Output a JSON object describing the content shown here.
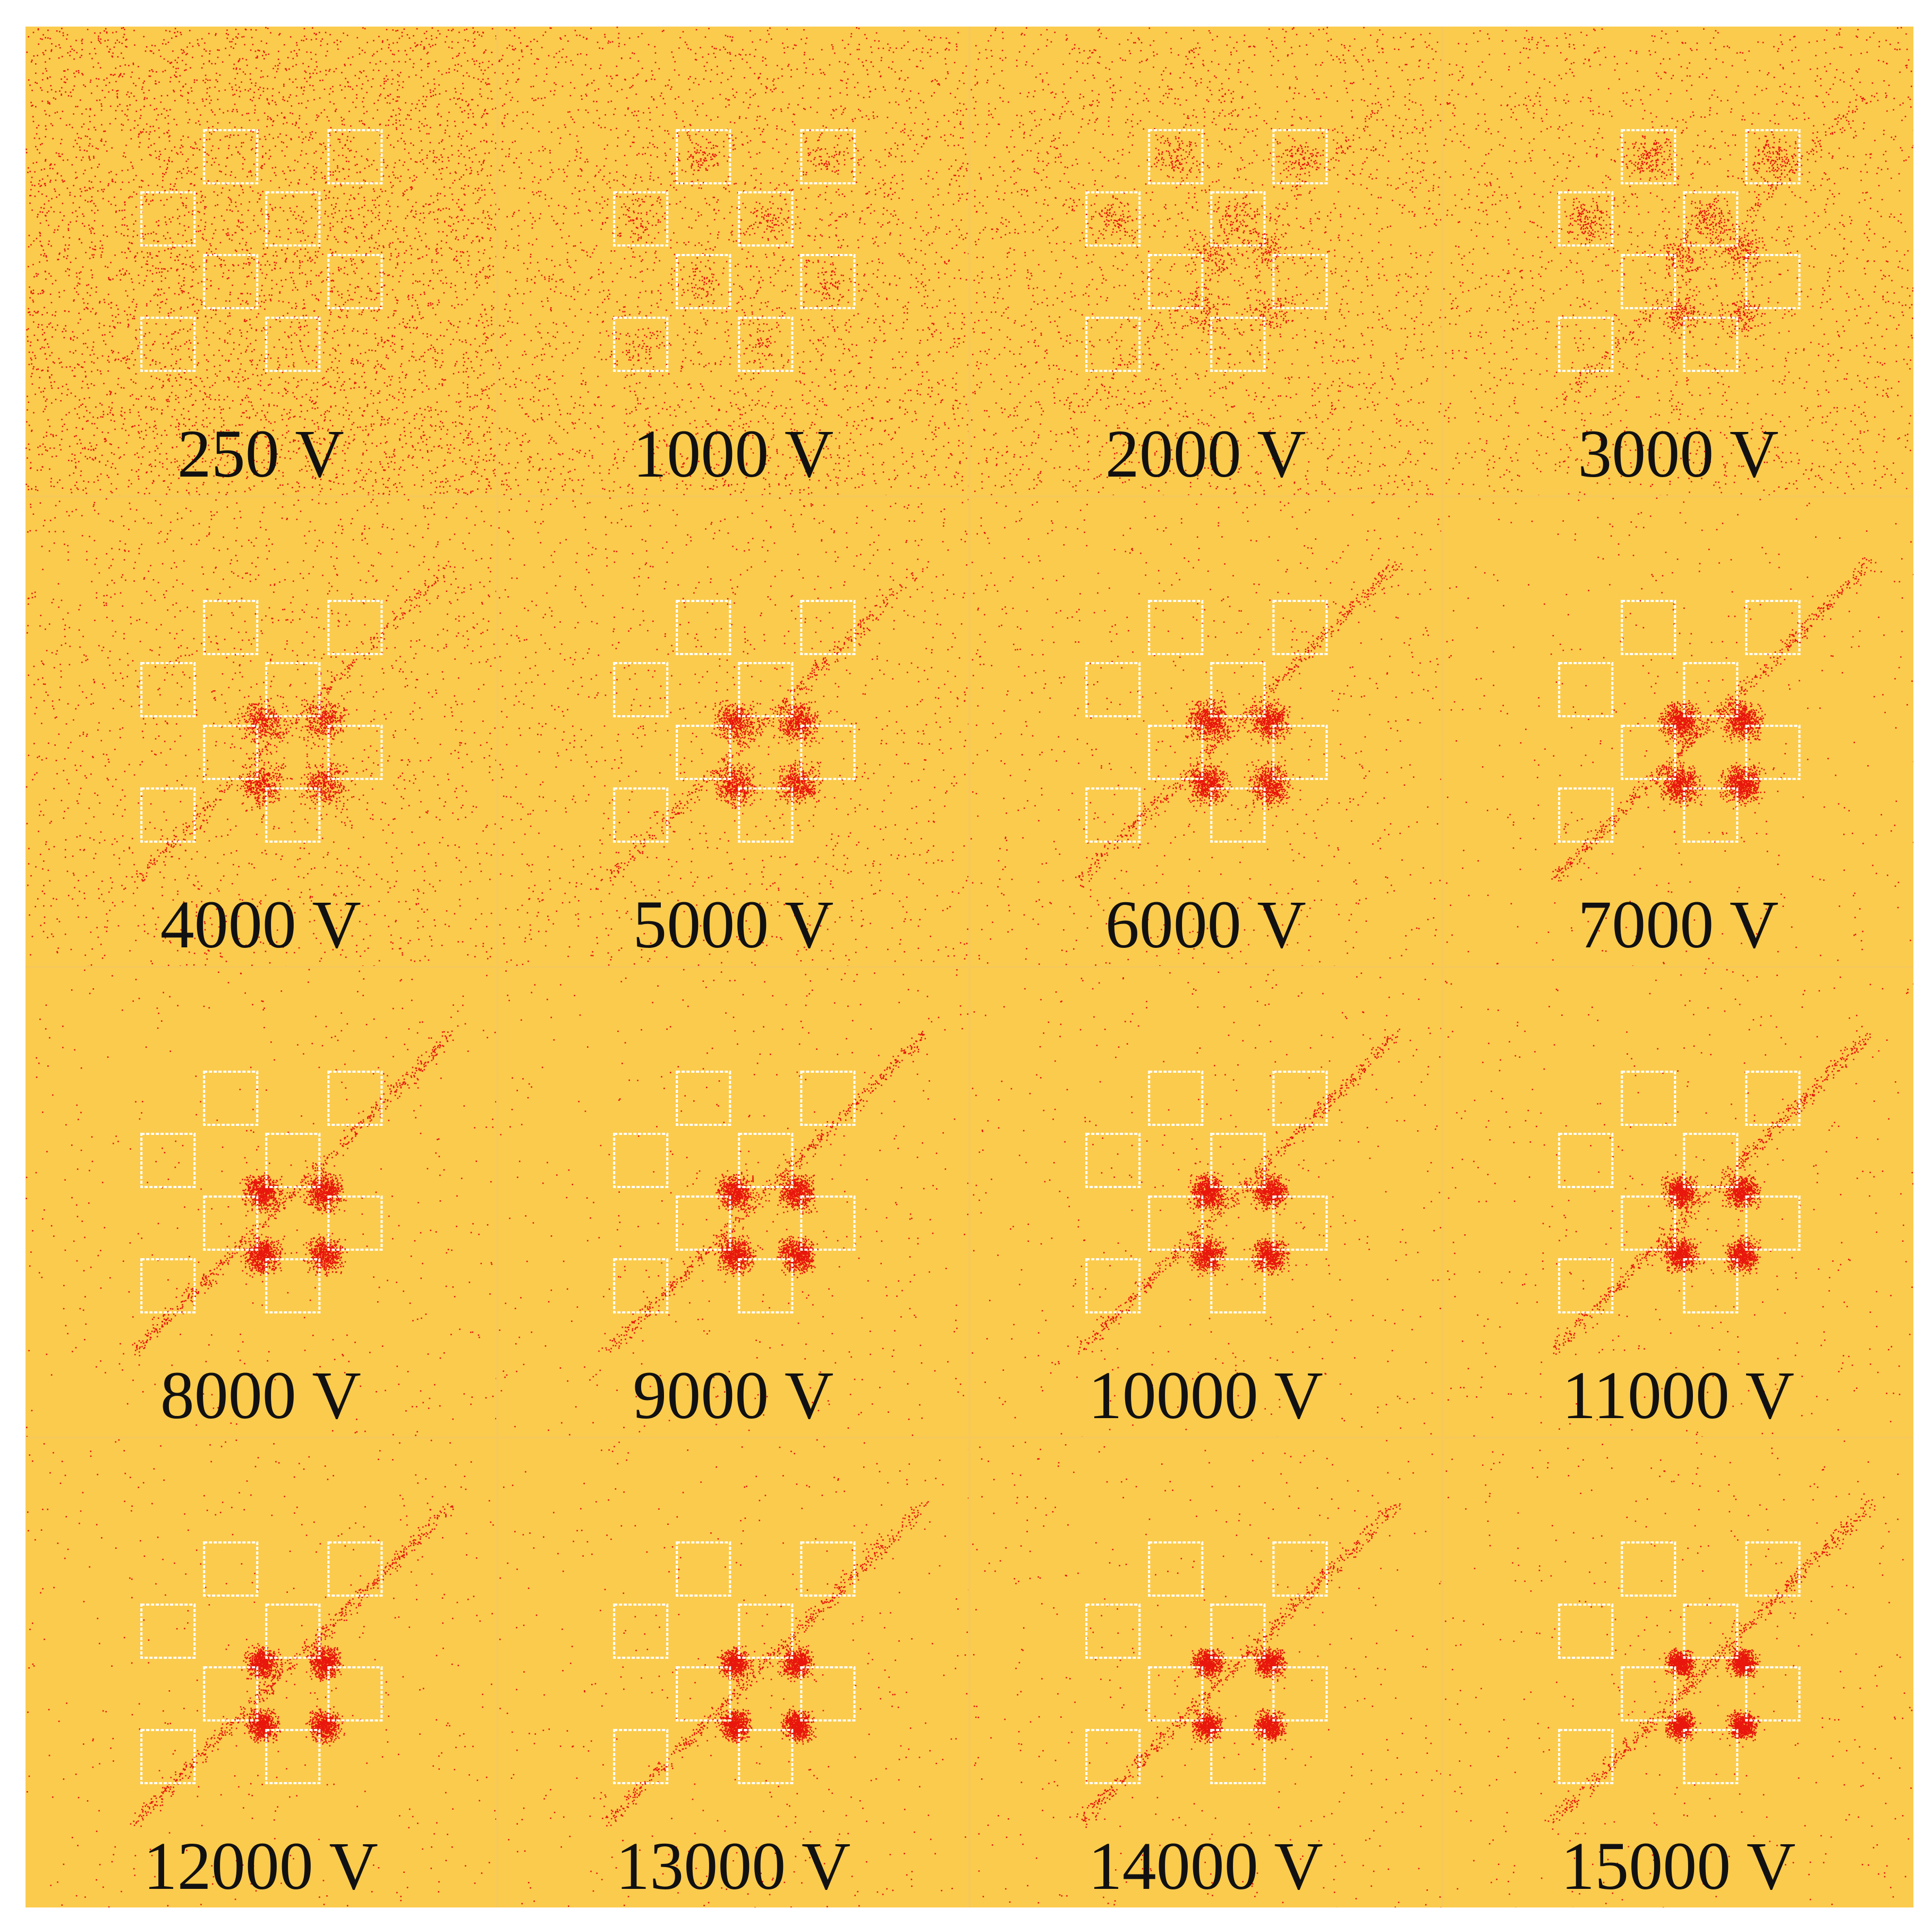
{
  "figure": {
    "background_color": "#fbcb4d",
    "particle_color": "#e8160c",
    "outline_color": "#ffffff",
    "panels": [
      {
        "label": "250 V",
        "voltage": 250
      },
      {
        "label": "1000 V",
        "voltage": 1000
      },
      {
        "label": "2000 V",
        "voltage": 2000
      },
      {
        "label": "3000 V",
        "voltage": 3000
      },
      {
        "label": "4000 V",
        "voltage": 4000
      },
      {
        "label": "5000 V",
        "voltage": 5000
      },
      {
        "label": "6000 V",
        "voltage": 6000
      },
      {
        "label": "7000 V",
        "voltage": 7000
      },
      {
        "label": "8000 V",
        "voltage": 8000
      },
      {
        "label": "9000 V",
        "voltage": 9000
      },
      {
        "label": "10000 V",
        "voltage": 10000
      },
      {
        "label": "11000 V",
        "voltage": 11000
      },
      {
        "label": "12000 V",
        "voltage": 12000
      },
      {
        "label": "13000 V",
        "voltage": 13000
      },
      {
        "label": "14000 V",
        "voltage": 14000
      },
      {
        "label": "15000 V",
        "voltage": 15000
      }
    ]
  }
}
